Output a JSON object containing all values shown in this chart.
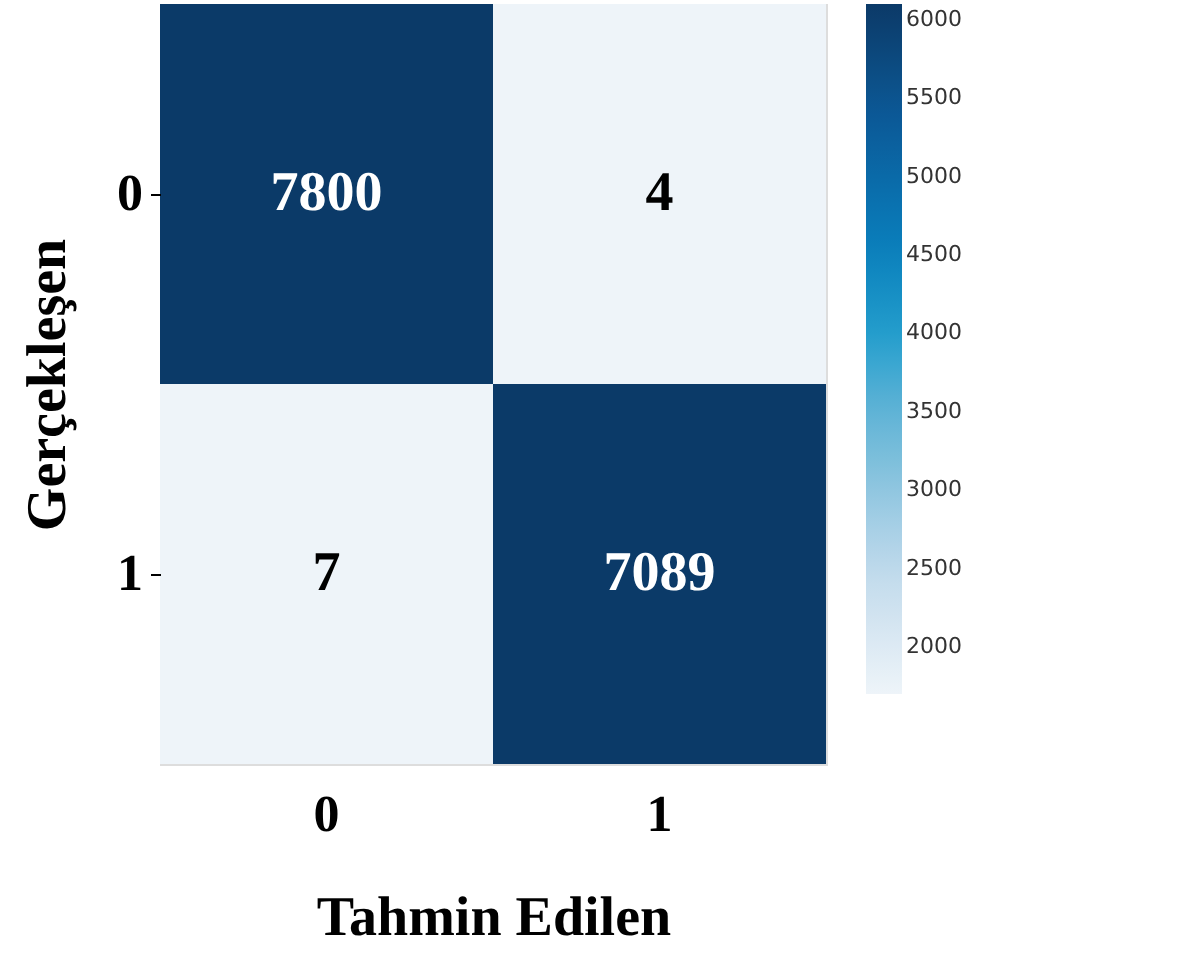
{
  "chart_data": {
    "type": "heatmap",
    "xlabel": "Tahmin Edilen",
    "ylabel": "Gerçekleşen",
    "categories": [
      "0",
      "1"
    ],
    "y_categories": [
      "0",
      "1"
    ],
    "cells": [
      [
        7800,
        4
      ],
      [
        7,
        7089
      ]
    ],
    "data_labels": true,
    "clim": [
      1700,
      6100
    ],
    "cticks": [
      2000,
      2500,
      3000,
      3500,
      4000,
      4500,
      5000,
      5500,
      6000
    ]
  }
}
